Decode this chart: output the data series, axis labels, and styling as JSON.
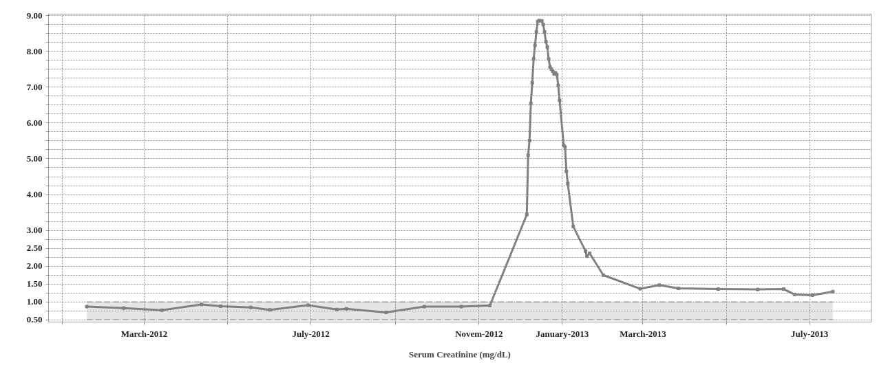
{
  "chart_data": {
    "type": "line",
    "xlabel": "Serum Creatinine (mg/dL)",
    "x": [
      "2012-01-19",
      "2012-02-15",
      "2012-03-14",
      "2012-04-12",
      "2012-04-26",
      "2012-05-18",
      "2012-06-01",
      "2012-06-29",
      "2012-07-20",
      "2012-07-27",
      "2012-08-25",
      "2012-09-22",
      "2012-10-19",
      "2012-11-09",
      "2012-12-06",
      "2012-12-07",
      "2012-12-08",
      "2012-12-09",
      "2012-12-10",
      "2012-12-11",
      "2012-12-12",
      "2012-12-13",
      "2012-12-14",
      "2012-12-15",
      "2012-12-17",
      "2012-12-18",
      "2012-12-19",
      "2012-12-20",
      "2012-12-21",
      "2012-12-22",
      "2012-12-23",
      "2012-12-24",
      "2012-12-25",
      "2012-12-26",
      "2012-12-27",
      "2012-12-28",
      "2012-12-29",
      "2012-12-30",
      "2013-01-02",
      "2013-01-03",
      "2013-01-04",
      "2013-01-05",
      "2013-01-09",
      "2013-01-18",
      "2013-01-19",
      "2013-01-21",
      "2013-01-31",
      "2013-02-27",
      "2013-03-13",
      "2013-03-27",
      "2013-04-25",
      "2013-05-24",
      "2013-06-12",
      "2013-06-20",
      "2013-07-03",
      "2013-07-18"
    ],
    "series": [
      {
        "color": "#808080",
        "values": [
          0.87,
          0.83,
          0.77,
          0.93,
          0.88,
          0.85,
          0.78,
          0.91,
          0.79,
          0.81,
          0.71,
          0.87,
          0.87,
          0.9,
          3.44,
          5.1,
          5.51,
          6.55,
          7.12,
          7.79,
          8.17,
          8.54,
          8.83,
          8.86,
          8.85,
          8.75,
          8.54,
          8.27,
          8.12,
          7.79,
          7.56,
          7.5,
          7.44,
          7.37,
          7.4,
          7.35,
          7.05,
          6.63,
          5.38,
          5.33,
          4.65,
          4.31,
          3.11,
          2.42,
          2.28,
          2.36,
          1.75,
          1.37,
          1.47,
          1.38,
          1.36,
          1.35,
          1.36,
          1.21,
          1.19,
          1.29
        ]
      }
    ],
    "marker": "square",
    "line_style": "solid",
    "grid": true,
    "xlim": [
      "2011-12-22",
      "2013-08-15"
    ],
    "xticks": [
      {
        "value": "2012-01-01",
        "label": null
      },
      {
        "value": "2012-03-01",
        "label": "March-2012"
      },
      {
        "value": "2012-05-01",
        "label": null
      },
      {
        "value": "2012-07-01",
        "label": "July-2012"
      },
      {
        "value": "2012-09-01",
        "label": null
      },
      {
        "value": "2012-11-01",
        "label": "Novem-2012"
      },
      {
        "value": "2013-01-01",
        "label": "January-2013"
      },
      {
        "value": "2013-03-01",
        "label": "March-2013"
      },
      {
        "value": "2013-05-01",
        "label": null
      },
      {
        "value": "2013-07-01",
        "label": "July-2013"
      }
    ],
    "ylim": [
      0.44,
      9.04
    ],
    "yticks": [
      {
        "value": 0.5,
        "label": "0.50"
      },
      {
        "value": 0.75,
        "label": null
      },
      {
        "value": 1.0,
        "label": "1.00"
      },
      {
        "value": 1.25,
        "label": null
      },
      {
        "value": 1.5,
        "label": "1.50"
      },
      {
        "value": 1.75,
        "label": null
      },
      {
        "value": 2.0,
        "label": "2.00"
      },
      {
        "value": 2.25,
        "label": null
      },
      {
        "value": 2.5,
        "label": "2.50"
      },
      {
        "value": 2.75,
        "label": null
      },
      {
        "value": 3.0,
        "label": "3.00"
      },
      {
        "value": 3.25,
        "label": null
      },
      {
        "value": 3.5,
        "label": null
      },
      {
        "value": 3.75,
        "label": null
      },
      {
        "value": 4.0,
        "label": "4.00"
      },
      {
        "value": 4.25,
        "label": null
      },
      {
        "value": 4.5,
        "label": null
      },
      {
        "value": 4.75,
        "label": null
      },
      {
        "value": 5.0,
        "label": "5.00"
      },
      {
        "value": 5.25,
        "label": null
      },
      {
        "value": 5.5,
        "label": null
      },
      {
        "value": 5.75,
        "label": null
      },
      {
        "value": 6.0,
        "label": "6.00"
      },
      {
        "value": 6.25,
        "label": null
      },
      {
        "value": 6.5,
        "label": null
      },
      {
        "value": 6.75,
        "label": null
      },
      {
        "value": 7.0,
        "label": "7.00"
      },
      {
        "value": 7.25,
        "label": null
      },
      {
        "value": 7.5,
        "label": null
      },
      {
        "value": 7.75,
        "label": null
      },
      {
        "value": 8.0,
        "label": "8.00"
      },
      {
        "value": 8.25,
        "label": null
      },
      {
        "value": 8.5,
        "label": null
      },
      {
        "value": 8.75,
        "label": null
      },
      {
        "value": 9.0,
        "label": "9.00"
      }
    ],
    "bands": [
      {
        "axis": "y",
        "from": 0.5,
        "to": 1.0,
        "color": "#e6e6e6"
      }
    ]
  }
}
